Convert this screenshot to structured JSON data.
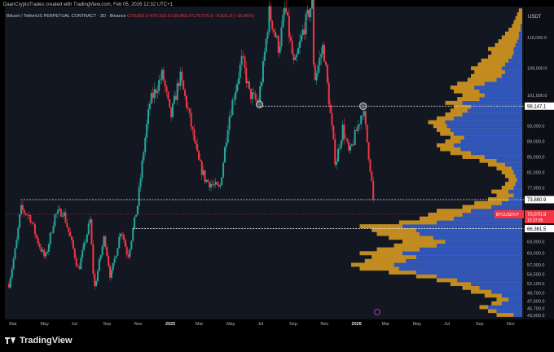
{
  "header": {
    "credit": "DaanCryptoTrades created with TradingView.com, Feb 05, 2026 12:32 UTC+1",
    "symbol_line": "Bitcoin / TetherUS PERPETUAL CONTRACT · 3D · Binance",
    "ohlc": "O78,692.5 H79,163.0 L69,862.0 C70,070.9 −8,621.6 (−10.96%)"
  },
  "currency": "USDT",
  "footer": {
    "brand": "TradingView"
  },
  "colors": {
    "bg": "#131722",
    "up": "#26a69a",
    "down": "#f23645",
    "vp_gold": "#e0a020",
    "vp_blue": "#1e4fc8",
    "price_tag": "#f23645",
    "level_tag": "#ffffff"
  },
  "chart_data": {
    "type": "candlestick",
    "x_ticks": [
      "Mar",
      "May",
      "Jul",
      "Sep",
      "Nov",
      "2025",
      "Mar",
      "May",
      "Jul",
      "Sep",
      "Nov",
      "2026",
      "Mar",
      "May",
      "Jul",
      "Sep",
      "Nov"
    ],
    "y_ticks": [
      "116,000.0",
      "108,000.0",
      "101,000.0",
      "93,000.0",
      "89,000.0",
      "85,000.0",
      "81,000.0",
      "77,000.0",
      "63,000.0",
      "60,000.0",
      "57,000.0",
      "54,500.0",
      "52,100.0",
      "49,700.0",
      "47,600.0",
      "45,700.0",
      "43,900.0"
    ],
    "ylim": [
      42800,
      124000
    ],
    "price_path": [
      [
        "2024-02-20",
        52000
      ],
      [
        "2024-03-05",
        62000
      ],
      [
        "2024-03-14",
        71500
      ],
      [
        "2024-04-01",
        69500
      ],
      [
        "2024-04-15",
        63500
      ],
      [
        "2024-05-01",
        58500
      ],
      [
        "2024-05-20",
        69800
      ],
      [
        "2024-06-05",
        71000
      ],
      [
        "2024-06-25",
        61000
      ],
      [
        "2024-07-05",
        55500
      ],
      [
        "2024-07-28",
        68500
      ],
      [
        "2024-08-05",
        50500
      ],
      [
        "2024-08-25",
        64500
      ],
      [
        "2024-09-06",
        53500
      ],
      [
        "2024-09-27",
        66500
      ],
      [
        "2024-10-10",
        59000
      ],
      [
        "2024-10-29",
        72500
      ],
      [
        "2024-11-12",
        89000
      ],
      [
        "2024-11-22",
        99000
      ],
      [
        "2024-12-17",
        106500
      ],
      [
        "2025-01-02",
        95000
      ],
      [
        "2025-01-20",
        106000
      ],
      [
        "2025-02-05",
        97000
      ],
      [
        "2025-02-25",
        84000
      ],
      [
        "2025-03-11",
        79000
      ],
      [
        "2025-04-08",
        76500
      ],
      [
        "2025-04-25",
        94500
      ],
      [
        "2025-05-22",
        110500
      ],
      [
        "2025-06-05",
        101500
      ],
      [
        "2025-06-22",
        99000
      ],
      [
        "2025-07-01",
        107000
      ],
      [
        "2025-07-14",
        122500
      ],
      [
        "2025-08-02",
        113000
      ],
      [
        "2025-08-14",
        124000
      ],
      [
        "2025-09-01",
        108000
      ],
      [
        "2025-09-18",
        117500
      ],
      [
        "2025-10-06",
        125000
      ],
      [
        "2025-10-10",
        104500
      ],
      [
        "2025-10-28",
        114000
      ],
      [
        "2025-11-21",
        83000
      ],
      [
        "2025-12-05",
        92500
      ],
      [
        "2025-12-18",
        85500
      ],
      [
        "2026-01-05",
        93500
      ],
      [
        "2026-01-14",
        97800
      ],
      [
        "2026-01-30",
        80000
      ],
      [
        "2026-02-05",
        70070.9
      ]
    ],
    "levels": [
      {
        "price": 98147.1,
        "label": "98,147.1",
        "style": "dotted",
        "from": "2025-06-25"
      },
      {
        "price": 73880.9,
        "label": "73,880.9",
        "style": "dotted",
        "from": "2024-03-14"
      },
      {
        "price": 66361.5,
        "label": "66,361.5",
        "style": "dotted",
        "from": "2024-10-20"
      }
    ],
    "last_price": {
      "price": 70070.9,
      "label": "70,070.9",
      "symbol": "BTCUSDT.P",
      "timer": "12:27:05"
    },
    "markers": [
      {
        "date": "2025-06-25",
        "price": 98600
      },
      {
        "date": "2026-01-14",
        "price": 98147.1
      }
    ],
    "volume_profile": {
      "bins": [
        [
          44000,
          0.15,
          0.05
        ],
        [
          45000,
          0.2,
          0.15
        ],
        [
          46000,
          0.25,
          0.2
        ],
        [
          47000,
          0.18,
          0.12
        ],
        [
          48000,
          0.15,
          0.08
        ],
        [
          49000,
          0.22,
          0.12
        ],
        [
          50000,
          0.3,
          0.18
        ],
        [
          51000,
          0.35,
          0.25
        ],
        [
          52000,
          0.42,
          0.3
        ],
        [
          53000,
          0.5,
          0.38
        ],
        [
          54000,
          0.62,
          0.5
        ],
        [
          55000,
          0.78,
          0.62
        ],
        [
          56000,
          0.95,
          0.72
        ],
        [
          57000,
          1.0,
          0.75
        ],
        [
          58000,
          0.92,
          0.68
        ],
        [
          59000,
          0.88,
          0.62
        ],
        [
          60000,
          0.95,
          0.7
        ],
        [
          61000,
          0.85,
          0.6
        ],
        [
          62000,
          0.75,
          0.5
        ],
        [
          63000,
          0.7,
          0.45
        ],
        [
          64000,
          0.78,
          0.52
        ],
        [
          65000,
          0.85,
          0.6
        ],
        [
          66000,
          0.88,
          0.62
        ],
        [
          67000,
          0.95,
          0.7
        ],
        [
          68000,
          0.72,
          0.5
        ],
        [
          69000,
          0.6,
          0.4
        ],
        [
          70000,
          0.55,
          0.35
        ],
        [
          71000,
          0.5,
          0.3
        ],
        [
          72000,
          0.35,
          0.18
        ],
        [
          73000,
          0.28,
          0.12
        ],
        [
          74000,
          0.2,
          0.08
        ],
        [
          75000,
          0.15,
          0.05
        ],
        [
          76000,
          0.18,
          0.08
        ],
        [
          77000,
          0.12,
          0.05
        ],
        [
          78000,
          0.1,
          0.04
        ],
        [
          79000,
          0.08,
          0.03
        ],
        [
          80000,
          0.1,
          0.04
        ],
        [
          81000,
          0.12,
          0.05
        ],
        [
          82000,
          0.15,
          0.06
        ],
        [
          83000,
          0.2,
          0.1
        ],
        [
          84000,
          0.25,
          0.15
        ],
        [
          85000,
          0.35,
          0.22
        ],
        [
          86000,
          0.42,
          0.3
        ],
        [
          87000,
          0.48,
          0.36
        ],
        [
          88000,
          0.5,
          0.4
        ],
        [
          89000,
          0.45,
          0.36
        ],
        [
          90000,
          0.42,
          0.34
        ],
        [
          91000,
          0.48,
          0.4
        ],
        [
          92000,
          0.5,
          0.42
        ],
        [
          93000,
          0.52,
          0.44
        ],
        [
          94000,
          0.55,
          0.45
        ],
        [
          95000,
          0.5,
          0.4
        ],
        [
          96000,
          0.45,
          0.35
        ],
        [
          97000,
          0.42,
          0.32
        ],
        [
          98000,
          0.4,
          0.3
        ],
        [
          99000,
          0.45,
          0.35
        ],
        [
          100000,
          0.38,
          0.25
        ],
        [
          101000,
          0.35,
          0.22
        ],
        [
          102000,
          0.4,
          0.25
        ],
        [
          103000,
          0.42,
          0.28
        ],
        [
          104000,
          0.38,
          0.22
        ],
        [
          105000,
          0.32,
          0.15
        ],
        [
          106000,
          0.3,
          0.12
        ],
        [
          107000,
          0.28,
          0.1
        ],
        [
          108000,
          0.3,
          0.12
        ],
        [
          109000,
          0.26,
          0.1
        ],
        [
          110000,
          0.24,
          0.08
        ],
        [
          111000,
          0.2,
          0.06
        ],
        [
          112000,
          0.18,
          0.05
        ],
        [
          113000,
          0.2,
          0.05
        ],
        [
          114000,
          0.16,
          0.04
        ],
        [
          115000,
          0.14,
          0.03
        ],
        [
          116000,
          0.12,
          0.02
        ],
        [
          117000,
          0.1,
          0.02
        ],
        [
          118000,
          0.08,
          0.01
        ],
        [
          119000,
          0.06,
          0.01
        ],
        [
          120000,
          0.05,
          0.0
        ],
        [
          121000,
          0.04,
          0.0
        ],
        [
          122000,
          0.03,
          0.0
        ],
        [
          123000,
          0.02,
          0.0
        ]
      ]
    }
  }
}
